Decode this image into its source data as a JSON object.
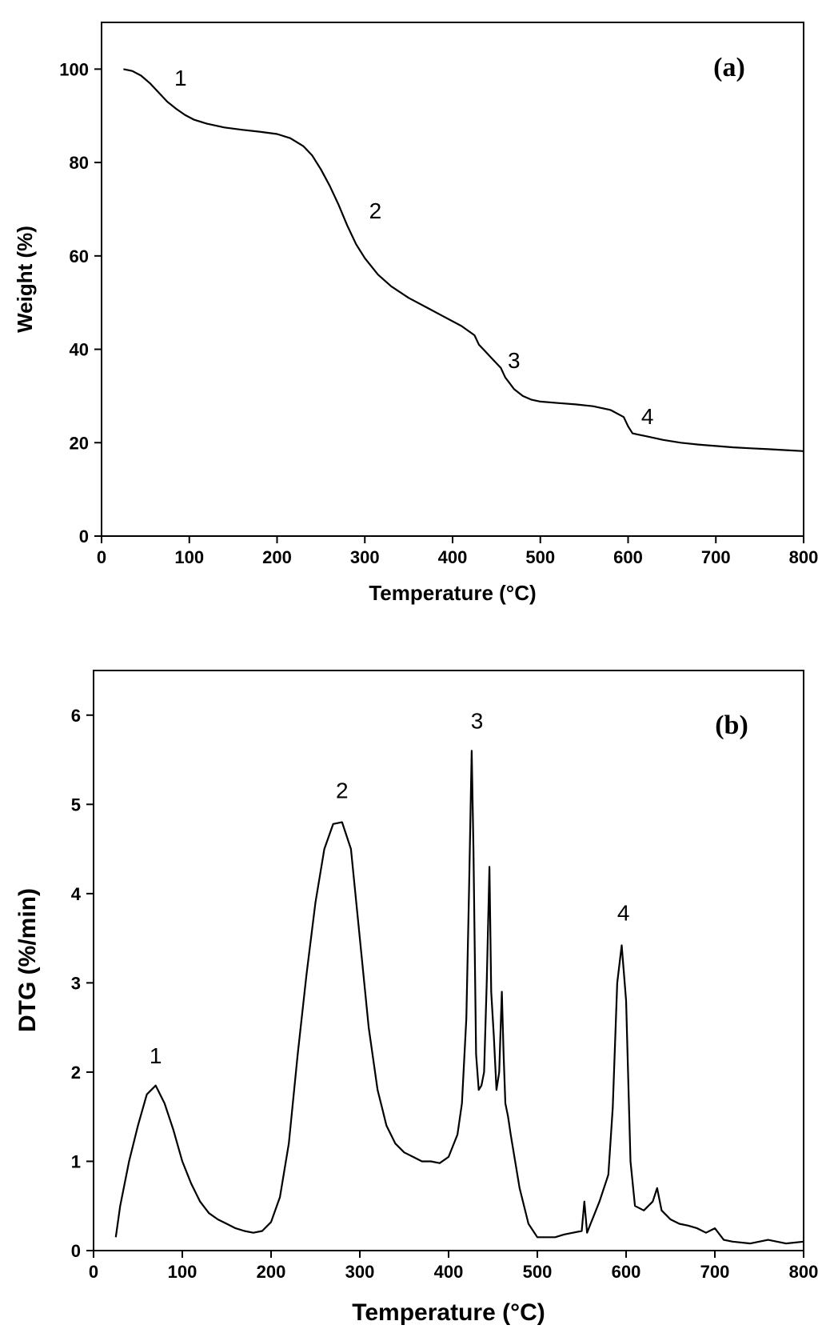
{
  "chart_data": [
    {
      "type": "line",
      "panel_label": "(a)",
      "xlabel": "Temperature (°C)",
      "ylabel": "Weight (%)",
      "xlim": [
        0,
        800
      ],
      "ylim": [
        0,
        110
      ],
      "xticks": [
        0,
        100,
        200,
        300,
        400,
        500,
        600,
        700,
        800
      ],
      "yticks": [
        0,
        20,
        40,
        60,
        80,
        100
      ],
      "grid": false,
      "series": [
        {
          "x": [
            25,
            35,
            45,
            55,
            65,
            75,
            85,
            95,
            105,
            120,
            140,
            160,
            180,
            200,
            215,
            230,
            240,
            250,
            260,
            270,
            280,
            290,
            300,
            315,
            330,
            350,
            370,
            390,
            410,
            425,
            430,
            435,
            445,
            455,
            460,
            470,
            480,
            490,
            500,
            520,
            540,
            560,
            580,
            595,
            600,
            605,
            610,
            620,
            640,
            660,
            680,
            700,
            720,
            740,
            760,
            780,
            800
          ],
          "y": [
            100.0,
            99.6,
            98.6,
            97.0,
            95.0,
            93.0,
            91.5,
            90.2,
            89.2,
            88.3,
            87.5,
            87.0,
            86.6,
            86.1,
            85.2,
            83.5,
            81.5,
            78.5,
            75.0,
            71.0,
            66.5,
            62.5,
            59.5,
            56.0,
            53.5,
            51.0,
            49.0,
            47.0,
            45.0,
            43.0,
            41.0,
            40.0,
            38.0,
            36.0,
            34.0,
            31.5,
            30.0,
            29.2,
            28.8,
            28.5,
            28.2,
            27.8,
            27.0,
            25.5,
            23.5,
            22.0,
            21.8,
            21.4,
            20.6,
            20.0,
            19.6,
            19.3,
            19.0,
            18.8,
            18.6,
            18.4,
            18.2
          ]
        }
      ],
      "annotations": [
        {
          "text": "1",
          "x": 90,
          "y": 96.5
        },
        {
          "text": "2",
          "x": 312,
          "y": 68
        },
        {
          "text": "3",
          "x": 470,
          "y": 36
        },
        {
          "text": "4",
          "x": 622,
          "y": 24
        }
      ]
    },
    {
      "type": "line",
      "panel_label": "(b)",
      "xlabel": "Temperature (°C)",
      "ylabel": "DTG (%/min)",
      "xlim": [
        0,
        800
      ],
      "ylim": [
        0,
        6.5
      ],
      "xticks": [
        0,
        100,
        200,
        300,
        400,
        500,
        600,
        700,
        800
      ],
      "yticks": [
        0,
        1,
        2,
        3,
        4,
        5,
        6
      ],
      "grid": false,
      "series": [
        {
          "x": [
            25,
            30,
            40,
            50,
            60,
            70,
            80,
            90,
            100,
            110,
            120,
            130,
            140,
            150,
            160,
            170,
            180,
            190,
            200,
            210,
            220,
            230,
            240,
            250,
            260,
            270,
            280,
            290,
            300,
            310,
            320,
            325,
            330,
            340,
            350,
            360,
            370,
            380,
            390,
            400,
            410,
            415,
            420,
            423,
            426,
            428,
            431,
            434,
            437,
            440,
            443,
            446,
            448,
            451,
            454,
            457,
            460,
            462,
            464,
            467,
            470,
            480,
            490,
            500,
            510,
            520,
            530,
            540,
            550,
            553,
            556,
            560,
            570,
            580,
            585,
            590,
            595,
            600,
            605,
            610,
            620,
            630,
            635,
            640,
            650,
            660,
            670,
            680,
            690,
            700,
            710,
            720,
            740,
            760,
            780,
            800
          ],
          "y": [
            0.15,
            0.5,
            1.0,
            1.4,
            1.75,
            1.85,
            1.65,
            1.35,
            1.0,
            0.75,
            0.55,
            0.42,
            0.35,
            0.3,
            0.25,
            0.22,
            0.2,
            0.22,
            0.32,
            0.6,
            1.2,
            2.2,
            3.1,
            3.9,
            4.5,
            4.78,
            4.8,
            4.5,
            3.5,
            2.5,
            1.8,
            1.6,
            1.4,
            1.2,
            1.1,
            1.05,
            1.0,
            1.0,
            0.98,
            1.05,
            1.3,
            1.65,
            2.6,
            4.0,
            5.6,
            4.5,
            2.2,
            1.8,
            1.85,
            2.0,
            3.0,
            4.3,
            2.9,
            2.4,
            1.8,
            2.0,
            2.9,
            2.2,
            1.65,
            1.5,
            1.3,
            0.7,
            0.3,
            0.15,
            0.15,
            0.15,
            0.18,
            0.2,
            0.22,
            0.55,
            0.2,
            0.3,
            0.55,
            0.85,
            1.6,
            3.0,
            3.42,
            2.8,
            1.0,
            0.5,
            0.45,
            0.55,
            0.7,
            0.45,
            0.35,
            0.3,
            0.28,
            0.25,
            0.2,
            0.25,
            0.12,
            0.1,
            0.08,
            0.12,
            0.08,
            0.1
          ]
        }
      ],
      "annotations": [
        {
          "text": "1",
          "x": 70,
          "y": 2.1
        },
        {
          "text": "2",
          "x": 280,
          "y": 5.07
        },
        {
          "text": "3",
          "x": 432,
          "y": 5.85
        },
        {
          "text": "4",
          "x": 597,
          "y": 3.7
        }
      ]
    }
  ]
}
